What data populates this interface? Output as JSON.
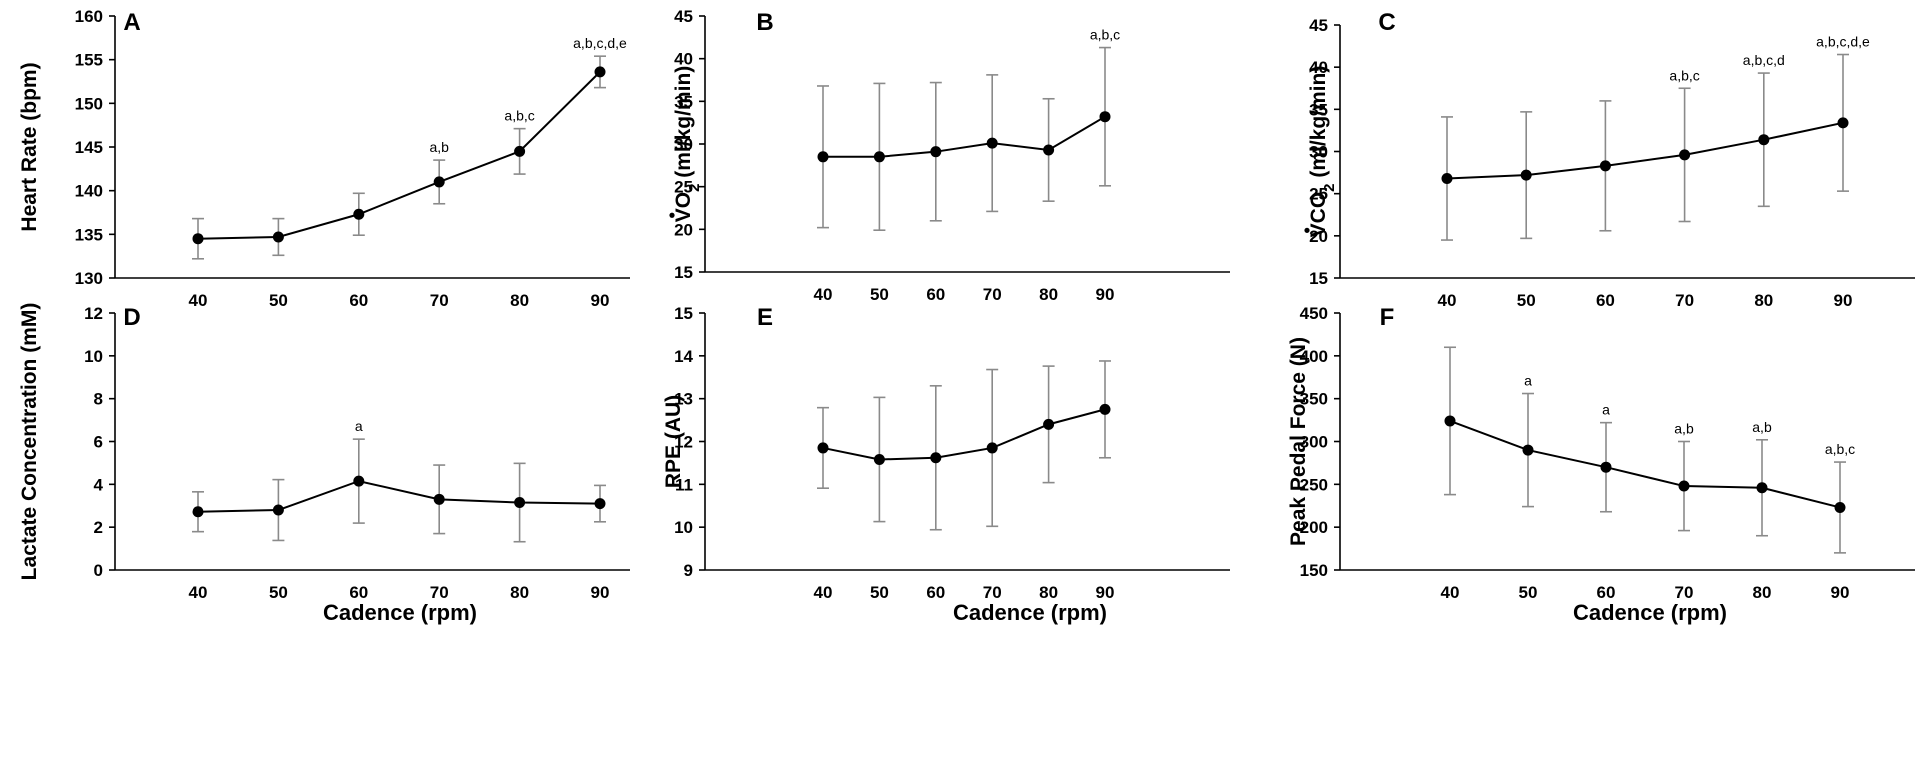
{
  "chart_data": [
    {
      "type": "line",
      "panel_label": "A",
      "ylabel": "Heart Rate (bpm)",
      "xlabel": "",
      "ylim": [
        130,
        160
      ],
      "yticks": [
        130,
        135,
        140,
        145,
        150,
        155,
        160
      ],
      "ytick_labels": [
        "130",
        "135",
        "140",
        "145",
        "150",
        "155",
        "160"
      ],
      "categories": [
        "40",
        "50",
        "60",
        "70",
        "80",
        "90"
      ],
      "x": [
        40,
        50,
        60,
        70,
        80,
        90
      ],
      "values": [
        134.5,
        134.7,
        137.3,
        141.0,
        144.5,
        153.6
      ],
      "err": [
        2.3,
        2.1,
        2.4,
        2.5,
        2.6,
        1.8
      ],
      "annotations": [
        "",
        "",
        "",
        "a,b",
        "a,b,c",
        "a,b,c,d,e"
      ]
    },
    {
      "type": "line",
      "panel_label": "B",
      "ylabel_main": "VO",
      "ylabel_sub": "2",
      "ylabel_rest": " (ml/kg/min)",
      "xlabel": "",
      "ylim": [
        15,
        45
      ],
      "yticks": [
        15,
        20,
        25,
        30,
        35,
        40,
        45
      ],
      "ytick_labels": [
        "15",
        "20",
        "25",
        "30",
        "35",
        "40",
        "45"
      ],
      "categories": [
        "40",
        "50",
        "60",
        "70",
        "80",
        "90"
      ],
      "x": [
        40,
        50,
        60,
        70,
        80,
        90
      ],
      "values": [
        28.5,
        28.5,
        29.1,
        30.1,
        29.3,
        33.2
      ],
      "err": [
        8.3,
        8.6,
        8.1,
        8.0,
        6.0,
        8.1
      ],
      "annotations": [
        "",
        "",
        "",
        "",
        "",
        "a,b,c"
      ]
    },
    {
      "type": "line",
      "panel_label": "C",
      "ylabel_main": "VCO",
      "ylabel_sub": "2",
      "ylabel_rest": " (ml/kg/min)",
      "xlabel": "",
      "ylim": [
        15,
        45
      ],
      "yticks": [
        15,
        20,
        25,
        30,
        35,
        40,
        45
      ],
      "ytick_labels": [
        "15",
        "20",
        "25",
        "30",
        "35",
        "40",
        "45"
      ],
      "categories": [
        "40",
        "50",
        "60",
        "70",
        "80",
        "90"
      ],
      "x": [
        40,
        50,
        60,
        70,
        80,
        90
      ],
      "values": [
        26.8,
        27.2,
        28.3,
        29.6,
        31.4,
        33.4
      ],
      "err": [
        7.3,
        7.5,
        7.7,
        7.9,
        7.9,
        8.1
      ],
      "annotations": [
        "",
        "",
        "",
        "a,b,c",
        "a,b,c,d",
        "a,b,c,d,e"
      ]
    },
    {
      "type": "line",
      "panel_label": "D",
      "ylabel": "Lactate Concentration (mM)",
      "xlabel": "Cadence (rpm)",
      "ylim": [
        0,
        12
      ],
      "yticks": [
        0,
        2,
        4,
        6,
        8,
        10,
        12
      ],
      "ytick_labels": [
        "0",
        "2",
        "4",
        "6",
        "8",
        "10",
        "12"
      ],
      "categories": [
        "40",
        "50",
        "60",
        "70",
        "80",
        "90"
      ],
      "x": [
        40,
        50,
        60,
        70,
        80,
        90
      ],
      "values": [
        2.72,
        2.8,
        4.15,
        3.3,
        3.15,
        3.1
      ],
      "err": [
        0.93,
        1.42,
        1.96,
        1.6,
        1.83,
        0.85
      ],
      "annotations": [
        "",
        "",
        "a",
        "",
        "",
        ""
      ]
    },
    {
      "type": "line",
      "panel_label": "E",
      "ylabel": "RPE (AU)",
      "xlabel": "Cadence (rpm)",
      "ylim": [
        9,
        15
      ],
      "yticks": [
        9,
        10,
        11,
        12,
        13,
        14,
        15
      ],
      "ytick_labels": [
        "9",
        "10",
        "11",
        "12",
        "13",
        "14",
        "15"
      ],
      "categories": [
        "40",
        "50",
        "60",
        "70",
        "80",
        "90"
      ],
      "x": [
        40,
        50,
        60,
        70,
        80,
        90
      ],
      "values": [
        11.85,
        11.58,
        11.62,
        11.85,
        12.4,
        12.75
      ],
      "err": [
        0.94,
        1.45,
        1.68,
        1.83,
        1.36,
        1.13
      ],
      "annotations": [
        "",
        "",
        "",
        "",
        "",
        ""
      ]
    },
    {
      "type": "line",
      "panel_label": "F",
      "ylabel": "Peak Pedal Force (N)",
      "xlabel": "Cadence (rpm)",
      "ylim": [
        150,
        450
      ],
      "yticks": [
        150,
        200,
        250,
        300,
        350,
        400,
        450
      ],
      "ytick_labels": [
        "150",
        "200",
        "250",
        "300",
        "350",
        "400",
        "450"
      ],
      "categories": [
        "40",
        "50",
        "60",
        "70",
        "80",
        "90"
      ],
      "x": [
        40,
        50,
        60,
        70,
        80,
        90
      ],
      "values": [
        324,
        290,
        270,
        248,
        246,
        223
      ],
      "err": [
        86,
        66,
        52,
        52,
        56,
        53
      ],
      "annotations": [
        "",
        "a",
        "a",
        "a,b",
        "a,b",
        "a,b,c"
      ]
    }
  ]
}
